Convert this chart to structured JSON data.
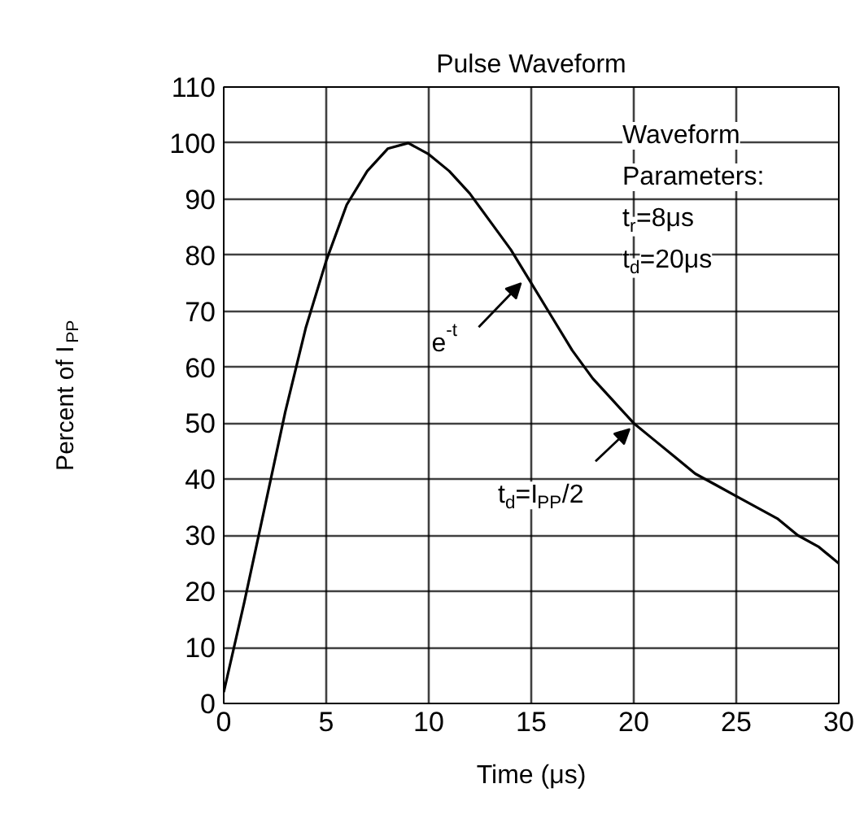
{
  "chart_data": {
    "type": "line",
    "title": "Pulse Waveform",
    "xlabel": "Time (μs)",
    "ylabel": "Percent of I$_{PP}$",
    "x": [
      0,
      1,
      2,
      3,
      4,
      5,
      6,
      7,
      8,
      9,
      10,
      11,
      12,
      13,
      14,
      15,
      16,
      17,
      18,
      19,
      20,
      21,
      22,
      23,
      24,
      25,
      26,
      27,
      28,
      29,
      30
    ],
    "series": [
      {
        "color": "#000000",
        "values": [
          2,
          18,
          35,
          52,
          67,
          79,
          89,
          95,
          99,
          100,
          98,
          95,
          91,
          86,
          81,
          75,
          69,
          63,
          58,
          54,
          50,
          47,
          44,
          41,
          39,
          37,
          35,
          33,
          30,
          28,
          25
        ]
      }
    ],
    "xlim": [
      0,
      30
    ],
    "ylim": [
      0,
      110
    ],
    "xticks": [
      0,
      5,
      10,
      15,
      20,
      25,
      30
    ],
    "yticks": [
      0,
      10,
      20,
      30,
      40,
      50,
      60,
      70,
      80,
      90,
      100,
      110
    ],
    "grid": true,
    "marker": "none",
    "line_style": "solid",
    "annotations": [
      "Waveform",
      "Parameters:",
      "t$_{r}$=8μs",
      "t$_{d}$=20μs",
      {
        "text": "e$^{-t}$",
        "x": 14.5,
        "y": 75
      },
      {
        "text": "t$_{d}$=I$_{PP}$/2",
        "x": 19.8,
        "y": 49
      }
    ]
  }
}
